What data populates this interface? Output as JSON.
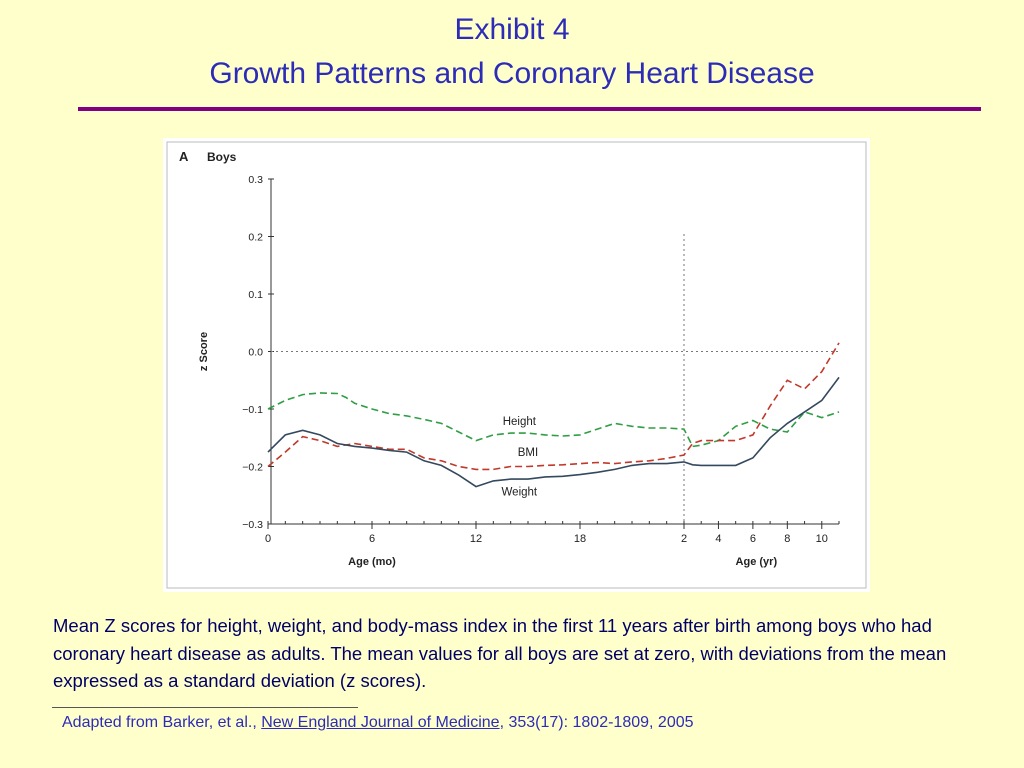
{
  "slide": {
    "title_line1": "Exhibit 4",
    "title_line2": "Growth Patterns and Coronary Heart Disease",
    "caption": "Mean Z scores for height, weight, and body-mass index in the first 11 years after birth among boys who had coronary heart disease as adults. The mean values for all boys are set at zero, with deviations from the mean expressed as a standard deviation (z scores).",
    "source_prefix": "Adapted from Barker, et al., ",
    "source_link": "New England Journal of Medicine",
    "source_suffix": ", 353(17): 1802-1809, 2005",
    "colors": {
      "background": "#ffffcc",
      "title": "#2c2cb8",
      "rule": "#800080",
      "caption": "#000066"
    }
  },
  "chart_data": {
    "type": "line",
    "panel_label": "A",
    "title": "Boys",
    "ylabel": "z Score",
    "ylim": [
      -0.3,
      0.3
    ],
    "yticks": [
      "0.3",
      "0.2",
      "0.1",
      "0.0",
      "−0.1",
      "−0.2",
      "−0.3"
    ],
    "reference_line": 0.0,
    "x_segments": [
      {
        "label": "Age (mo)",
        "range": [
          0,
          24
        ],
        "ticks": [
          "0",
          "6",
          "12",
          "18",
          "2"
        ]
      },
      {
        "label": "Age (yr)",
        "range": [
          2,
          11
        ],
        "ticks": [
          "4",
          "6",
          "8",
          "10"
        ]
      }
    ],
    "divider_at_age_months": 24,
    "series": [
      {
        "name": "Height",
        "color": "#2f9e44",
        "dash": "dashed",
        "months": [
          0,
          1,
          2,
          3,
          4,
          4.5,
          5,
          6,
          7,
          8,
          9,
          10,
          11,
          12,
          13,
          14,
          15,
          16,
          17,
          18,
          19,
          20,
          21,
          22,
          23,
          24
        ],
        "months_values": [
          -0.1,
          -0.085,
          -0.075,
          -0.072,
          -0.073,
          -0.08,
          -0.09,
          -0.1,
          -0.108,
          -0.112,
          -0.118,
          -0.125,
          -0.14,
          -0.155,
          -0.145,
          -0.142,
          -0.142,
          -0.145,
          -0.147,
          -0.145,
          -0.135,
          -0.125,
          -0.13,
          -0.133,
          -0.133,
          -0.135
        ],
        "years": [
          2.5,
          3,
          4,
          5,
          6,
          7,
          8,
          9,
          10,
          11
        ],
        "years_values": [
          -0.165,
          -0.163,
          -0.155,
          -0.13,
          -0.12,
          -0.135,
          -0.14,
          -0.105,
          -0.115,
          -0.105
        ]
      },
      {
        "name": "BMI",
        "color": "#c0392b",
        "dash": "dashed",
        "months": [
          0,
          1,
          2,
          3,
          4,
          5,
          6,
          7,
          8,
          9,
          10,
          11,
          12,
          13,
          14,
          15,
          16,
          17,
          18,
          19,
          20,
          21,
          22,
          23,
          24
        ],
        "months_values": [
          -0.2,
          -0.175,
          -0.148,
          -0.155,
          -0.165,
          -0.16,
          -0.165,
          -0.17,
          -0.17,
          -0.185,
          -0.19,
          -0.2,
          -0.205,
          -0.205,
          -0.2,
          -0.2,
          -0.198,
          -0.197,
          -0.195,
          -0.193,
          -0.195,
          -0.192,
          -0.19,
          -0.186,
          -0.18
        ],
        "years": [
          2.5,
          3,
          4,
          5,
          6,
          7,
          8,
          9,
          10,
          11
        ],
        "years_values": [
          -0.16,
          -0.155,
          -0.155,
          -0.155,
          -0.145,
          -0.095,
          -0.05,
          -0.065,
          -0.035,
          0.015
        ]
      },
      {
        "name": "Weight",
        "color": "#34495e",
        "dash": "solid",
        "months": [
          0,
          1,
          2,
          3,
          4,
          5,
          6,
          7,
          8,
          9,
          10,
          11,
          12,
          13,
          14,
          15,
          16,
          17,
          18,
          19,
          20,
          21,
          22,
          23,
          24
        ],
        "months_values": [
          -0.175,
          -0.145,
          -0.137,
          -0.145,
          -0.16,
          -0.165,
          -0.168,
          -0.172,
          -0.175,
          -0.19,
          -0.198,
          -0.215,
          -0.235,
          -0.225,
          -0.222,
          -0.222,
          -0.218,
          -0.217,
          -0.214,
          -0.21,
          -0.205,
          -0.198,
          -0.195,
          -0.195,
          -0.192
        ],
        "years": [
          2.5,
          3,
          4,
          5,
          6,
          7,
          8,
          9,
          10,
          11
        ],
        "years_values": [
          -0.197,
          -0.198,
          -0.198,
          -0.198,
          -0.185,
          -0.15,
          -0.125,
          -0.105,
          -0.085,
          -0.045
        ]
      }
    ]
  }
}
